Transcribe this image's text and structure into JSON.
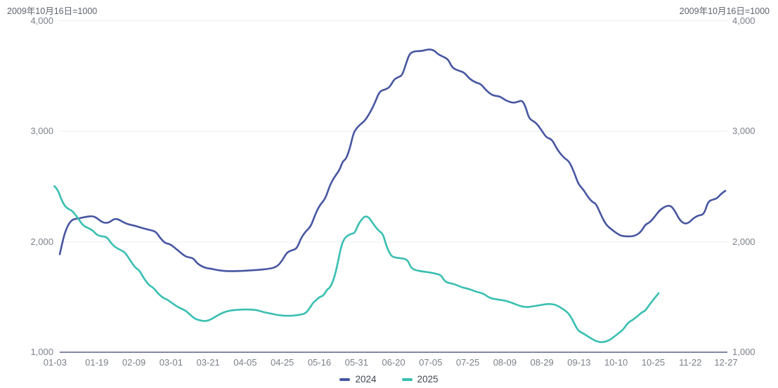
{
  "header": {
    "left_note": "2009年10月16日=1000",
    "right_note": "2009年10月16日=1000"
  },
  "legend": {
    "items": [
      {
        "label": "2024",
        "color": "#4656a1"
      },
      {
        "label": "2025",
        "color": "#38bfb2"
      }
    ]
  },
  "colors": {
    "grid_line": "#e9ecf3",
    "axis_line": "#8287a5",
    "tick_label": "#7b8089",
    "note_text": "#5d626d",
    "legend_text": "#404650"
  },
  "chart_data": {
    "type": "line",
    "title": "2009年10月16日=1000",
    "xlabel": "",
    "ylabel": "",
    "grid": true,
    "legend_position": "bottom",
    "ylim": [
      1000,
      4000
    ],
    "y_ticks": [
      4000,
      3000,
      2000,
      1000
    ],
    "y_tick_labels": [
      "4,000",
      "3,000",
      "2,000",
      "1,000"
    ],
    "x_tick_labels": [
      "01-03",
      "01-19",
      "02-09",
      "03-01",
      "03-21",
      "04-05",
      "04-25",
      "05-16",
      "05-31",
      "06-20",
      "07-05",
      "07-25",
      "08-09",
      "08-29",
      "09-13",
      "10-10",
      "10-25",
      "11-22",
      "12-27"
    ],
    "series": [
      {
        "name": "2024",
        "color": "#4656a1",
        "points": [
          [
            0,
            1890
          ],
          [
            0.003,
            1970
          ],
          [
            0.007,
            2075
          ],
          [
            0.013,
            2160
          ],
          [
            0.019,
            2205
          ],
          [
            0.028,
            2212
          ],
          [
            0.039,
            2228
          ],
          [
            0.049,
            2235
          ],
          [
            0.055,
            2220
          ],
          [
            0.063,
            2180
          ],
          [
            0.071,
            2170
          ],
          [
            0.077,
            2190
          ],
          [
            0.082,
            2210
          ],
          [
            0.088,
            2205
          ],
          [
            0.095,
            2180
          ],
          [
            0.102,
            2160
          ],
          [
            0.113,
            2147
          ],
          [
            0.123,
            2127
          ],
          [
            0.134,
            2110
          ],
          [
            0.144,
            2095
          ],
          [
            0.151,
            2032
          ],
          [
            0.158,
            1990
          ],
          [
            0.165,
            1982
          ],
          [
            0.172,
            1950
          ],
          [
            0.181,
            1905
          ],
          [
            0.187,
            1875
          ],
          [
            0.193,
            1862
          ],
          [
            0.2,
            1855
          ],
          [
            0.207,
            1800
          ],
          [
            0.218,
            1766
          ],
          [
            0.228,
            1758
          ],
          [
            0.235,
            1748
          ],
          [
            0.251,
            1736
          ],
          [
            0.274,
            1740
          ],
          [
            0.295,
            1748
          ],
          [
            0.316,
            1760
          ],
          [
            0.326,
            1780
          ],
          [
            0.334,
            1840
          ],
          [
            0.34,
            1905
          ],
          [
            0.347,
            1925
          ],
          [
            0.355,
            1938
          ],
          [
            0.361,
            2030
          ],
          [
            0.368,
            2095
          ],
          [
            0.376,
            2140
          ],
          [
            0.382,
            2240
          ],
          [
            0.389,
            2330
          ],
          [
            0.398,
            2392
          ],
          [
            0.405,
            2520
          ],
          [
            0.413,
            2600
          ],
          [
            0.419,
            2650
          ],
          [
            0.424,
            2730
          ],
          [
            0.429,
            2750
          ],
          [
            0.435,
            2855
          ],
          [
            0.44,
            2985
          ],
          [
            0.445,
            3030
          ],
          [
            0.451,
            3065
          ],
          [
            0.457,
            3095
          ],
          [
            0.465,
            3170
          ],
          [
            0.472,
            3255
          ],
          [
            0.479,
            3360
          ],
          [
            0.487,
            3375
          ],
          [
            0.494,
            3395
          ],
          [
            0.501,
            3470
          ],
          [
            0.508,
            3490
          ],
          [
            0.513,
            3505
          ],
          [
            0.519,
            3615
          ],
          [
            0.524,
            3700
          ],
          [
            0.531,
            3722
          ],
          [
            0.54,
            3722
          ],
          [
            0.546,
            3730
          ],
          [
            0.554,
            3740
          ],
          [
            0.561,
            3728
          ],
          [
            0.566,
            3697
          ],
          [
            0.572,
            3678
          ],
          [
            0.577,
            3665
          ],
          [
            0.582,
            3645
          ],
          [
            0.588,
            3570
          ],
          [
            0.598,
            3545
          ],
          [
            0.606,
            3530
          ],
          [
            0.614,
            3470
          ],
          [
            0.624,
            3437
          ],
          [
            0.631,
            3425
          ],
          [
            0.638,
            3372
          ],
          [
            0.648,
            3322
          ],
          [
            0.659,
            3315
          ],
          [
            0.666,
            3285
          ],
          [
            0.673,
            3265
          ],
          [
            0.68,
            3255
          ],
          [
            0.687,
            3267
          ],
          [
            0.693,
            3278
          ],
          [
            0.698,
            3215
          ],
          [
            0.703,
            3110
          ],
          [
            0.713,
            3080
          ],
          [
            0.721,
            3015
          ],
          [
            0.729,
            2940
          ],
          [
            0.737,
            2930
          ],
          [
            0.745,
            2835
          ],
          [
            0.755,
            2760
          ],
          [
            0.763,
            2730
          ],
          [
            0.771,
            2620
          ],
          [
            0.777,
            2520
          ],
          [
            0.784,
            2475
          ],
          [
            0.792,
            2400
          ],
          [
            0.798,
            2360
          ],
          [
            0.803,
            2348
          ],
          [
            0.811,
            2240
          ],
          [
            0.818,
            2158
          ],
          [
            0.826,
            2115
          ],
          [
            0.835,
            2076
          ],
          [
            0.842,
            2052
          ],
          [
            0.861,
            2050
          ],
          [
            0.871,
            2095
          ],
          [
            0.877,
            2158
          ],
          [
            0.884,
            2178
          ],
          [
            0.892,
            2235
          ],
          [
            0.898,
            2285
          ],
          [
            0.907,
            2323
          ],
          [
            0.915,
            2330
          ],
          [
            0.921,
            2285
          ],
          [
            0.928,
            2203
          ],
          [
            0.935,
            2165
          ],
          [
            0.942,
            2172
          ],
          [
            0.949,
            2215
          ],
          [
            0.956,
            2240
          ],
          [
            0.965,
            2248
          ],
          [
            0.971,
            2367
          ],
          [
            0.979,
            2385
          ],
          [
            0.984,
            2392
          ],
          [
            0.992,
            2443
          ],
          [
            0.997,
            2462
          ]
        ]
      },
      {
        "name": "2025",
        "color": "#38bfb2",
        "points": [
          [
            -0.008,
            2505
          ],
          [
            -0.003,
            2475
          ],
          [
            0.002,
            2390
          ],
          [
            0.007,
            2330
          ],
          [
            0.012,
            2300
          ],
          [
            0.018,
            2285
          ],
          [
            0.023,
            2250
          ],
          [
            0.028,
            2210
          ],
          [
            0.035,
            2148
          ],
          [
            0.042,
            2128
          ],
          [
            0.049,
            2108
          ],
          [
            0.056,
            2062
          ],
          [
            0.063,
            2052
          ],
          [
            0.071,
            2045
          ],
          [
            0.077,
            1988
          ],
          [
            0.084,
            1950
          ],
          [
            0.092,
            1925
          ],
          [
            0.098,
            1905
          ],
          [
            0.105,
            1840
          ],
          [
            0.113,
            1768
          ],
          [
            0.119,
            1748
          ],
          [
            0.126,
            1672
          ],
          [
            0.134,
            1608
          ],
          [
            0.14,
            1590
          ],
          [
            0.147,
            1538
          ],
          [
            0.155,
            1495
          ],
          [
            0.161,
            1482
          ],
          [
            0.168,
            1450
          ],
          [
            0.176,
            1418
          ],
          [
            0.182,
            1400
          ],
          [
            0.189,
            1380
          ],
          [
            0.197,
            1335
          ],
          [
            0.203,
            1305
          ],
          [
            0.211,
            1292
          ],
          [
            0.218,
            1285
          ],
          [
            0.226,
            1300
          ],
          [
            0.237,
            1340
          ],
          [
            0.245,
            1365
          ],
          [
            0.253,
            1380
          ],
          [
            0.263,
            1388
          ],
          [
            0.274,
            1392
          ],
          [
            0.284,
            1392
          ],
          [
            0.295,
            1388
          ],
          [
            0.305,
            1368
          ],
          [
            0.316,
            1355
          ],
          [
            0.326,
            1342
          ],
          [
            0.337,
            1335
          ],
          [
            0.347,
            1335
          ],
          [
            0.358,
            1342
          ],
          [
            0.368,
            1355
          ],
          [
            0.374,
            1400
          ],
          [
            0.379,
            1450
          ],
          [
            0.384,
            1475
          ],
          [
            0.389,
            1505
          ],
          [
            0.395,
            1515
          ],
          [
            0.4,
            1570
          ],
          [
            0.405,
            1590
          ],
          [
            0.411,
            1672
          ],
          [
            0.416,
            1798
          ],
          [
            0.421,
            1950
          ],
          [
            0.426,
            2032
          ],
          [
            0.432,
            2062
          ],
          [
            0.437,
            2075
          ],
          [
            0.442,
            2082
          ],
          [
            0.447,
            2158
          ],
          [
            0.453,
            2210
          ],
          [
            0.458,
            2235
          ],
          [
            0.463,
            2222
          ],
          [
            0.468,
            2178
          ],
          [
            0.474,
            2128
          ],
          [
            0.479,
            2095
          ],
          [
            0.484,
            2076
          ],
          [
            0.489,
            1968
          ],
          [
            0.495,
            1886
          ],
          [
            0.5,
            1862
          ],
          [
            0.511,
            1855
          ],
          [
            0.521,
            1842
          ],
          [
            0.526,
            1768
          ],
          [
            0.532,
            1748
          ],
          [
            0.542,
            1735
          ],
          [
            0.553,
            1728
          ],
          [
            0.563,
            1715
          ],
          [
            0.571,
            1703
          ],
          [
            0.576,
            1652
          ],
          [
            0.581,
            1633
          ],
          [
            0.592,
            1620
          ],
          [
            0.602,
            1590
          ],
          [
            0.613,
            1578
          ],
          [
            0.623,
            1552
          ],
          [
            0.634,
            1538
          ],
          [
            0.644,
            1495
          ],
          [
            0.655,
            1482
          ],
          [
            0.665,
            1475
          ],
          [
            0.676,
            1456
          ],
          [
            0.686,
            1430
          ],
          [
            0.697,
            1412
          ],
          [
            0.707,
            1418
          ],
          [
            0.718,
            1430
          ],
          [
            0.732,
            1443
          ],
          [
            0.742,
            1437
          ],
          [
            0.753,
            1400
          ],
          [
            0.763,
            1355
          ],
          [
            0.771,
            1260
          ],
          [
            0.777,
            1196
          ],
          [
            0.784,
            1177
          ],
          [
            0.795,
            1133
          ],
          [
            0.805,
            1101
          ],
          [
            0.814,
            1095
          ],
          [
            0.823,
            1114
          ],
          [
            0.829,
            1140
          ],
          [
            0.837,
            1177
          ],
          [
            0.844,
            1210
          ],
          [
            0.851,
            1272
          ],
          [
            0.858,
            1297
          ],
          [
            0.865,
            1330
          ],
          [
            0.872,
            1367
          ],
          [
            0.877,
            1380
          ],
          [
            0.882,
            1424
          ],
          [
            0.889,
            1481
          ],
          [
            0.897,
            1538
          ]
        ]
      }
    ]
  }
}
